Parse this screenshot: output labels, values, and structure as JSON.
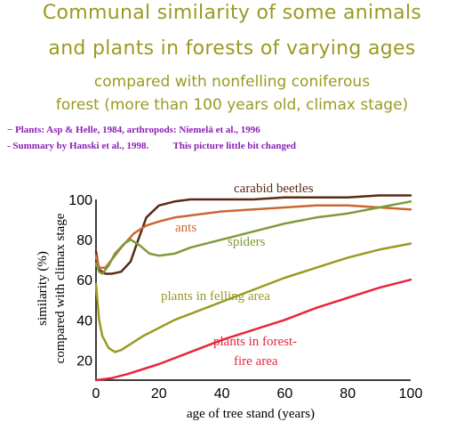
{
  "title": {
    "line1": "Communal similarity of some animals",
    "line2": "and plants in forests of varying ages",
    "line3": "compared with nonfelling coniferous",
    "line4": "forest (more than 100 years old, climax stage)"
  },
  "sources": {
    "line1": "− Plants: Asp & Helle, 1984, arthropods: Niemelä et al., 1996",
    "line2": "- Summary by Hanski et al., 1998.          This picture little bit changed"
  },
  "colors": {
    "title": "#9a9a22",
    "sources": "#8a1fb2",
    "carabid_beetles": "#5a2a12",
    "ants": "#cc6633",
    "spiders": "#7e9a38",
    "plants_felling": "#9a9a22",
    "plants_fire": "#e8253c"
  },
  "chart_data": {
    "type": "line",
    "xlabel": "age of tree stand (years)",
    "ylabel_line1": "similarity (%)",
    "ylabel_line2": "compared with climax stage",
    "xlim": [
      0,
      100
    ],
    "ylim": [
      10,
      100
    ],
    "xticks": [
      0,
      20,
      40,
      60,
      80,
      100
    ],
    "yticks": [
      20,
      40,
      60,
      80,
      100
    ],
    "grid": false,
    "series": [
      {
        "name": "carabid beetles",
        "color": "#5a2a12",
        "points": [
          [
            0,
            74
          ],
          [
            1,
            65
          ],
          [
            3,
            63
          ],
          [
            5,
            63
          ],
          [
            8,
            64
          ],
          [
            11,
            69
          ],
          [
            13,
            78
          ],
          [
            16,
            91
          ],
          [
            20,
            97
          ],
          [
            25,
            99
          ],
          [
            30,
            100
          ],
          [
            40,
            100
          ],
          [
            50,
            100
          ],
          [
            60,
            101
          ],
          [
            70,
            101
          ],
          [
            80,
            101
          ],
          [
            90,
            102
          ],
          [
            100,
            102
          ]
        ]
      },
      {
        "name": "ants",
        "color": "#cc6633",
        "points": [
          [
            0,
            72
          ],
          [
            1,
            66
          ],
          [
            3,
            66
          ],
          [
            5,
            70
          ],
          [
            8,
            76
          ],
          [
            12,
            83
          ],
          [
            16,
            87
          ],
          [
            20,
            89
          ],
          [
            25,
            91
          ],
          [
            30,
            92
          ],
          [
            40,
            94
          ],
          [
            50,
            95
          ],
          [
            60,
            96
          ],
          [
            70,
            97
          ],
          [
            80,
            97
          ],
          [
            90,
            96
          ],
          [
            100,
            95
          ]
        ]
      },
      {
        "name": "spiders",
        "color": "#7e9a38",
        "points": [
          [
            0,
            68
          ],
          [
            1,
            64
          ],
          [
            2,
            63
          ],
          [
            4,
            67
          ],
          [
            6,
            73
          ],
          [
            9,
            78
          ],
          [
            11,
            80
          ],
          [
            14,
            77
          ],
          [
            17,
            73
          ],
          [
            20,
            72
          ],
          [
            25,
            73
          ],
          [
            30,
            76
          ],
          [
            40,
            80
          ],
          [
            50,
            84
          ],
          [
            60,
            88
          ],
          [
            70,
            91
          ],
          [
            80,
            93
          ],
          [
            90,
            96
          ],
          [
            100,
            99
          ]
        ]
      },
      {
        "name": "plants in felling area",
        "color": "#9a9a22",
        "points": [
          [
            0,
            58
          ],
          [
            1,
            40
          ],
          [
            2,
            32
          ],
          [
            4,
            26
          ],
          [
            6,
            24
          ],
          [
            8,
            25
          ],
          [
            11,
            28
          ],
          [
            15,
            32
          ],
          [
            20,
            36
          ],
          [
            25,
            40
          ],
          [
            30,
            43
          ],
          [
            40,
            49
          ],
          [
            50,
            55
          ],
          [
            60,
            61
          ],
          [
            70,
            66
          ],
          [
            80,
            71
          ],
          [
            90,
            75
          ],
          [
            100,
            78
          ]
        ]
      },
      {
        "name": "plants in forest-fire area",
        "label_line1": "plants in forest-",
        "label_line2": "fire area",
        "color": "#e8253c",
        "points": [
          [
            0,
            10
          ],
          [
            5,
            11
          ],
          [
            10,
            13
          ],
          [
            20,
            18
          ],
          [
            30,
            24
          ],
          [
            40,
            30
          ],
          [
            50,
            35
          ],
          [
            60,
            40
          ],
          [
            70,
            46
          ],
          [
            80,
            51
          ],
          [
            90,
            56
          ],
          [
            100,
            60
          ]
        ]
      }
    ]
  }
}
